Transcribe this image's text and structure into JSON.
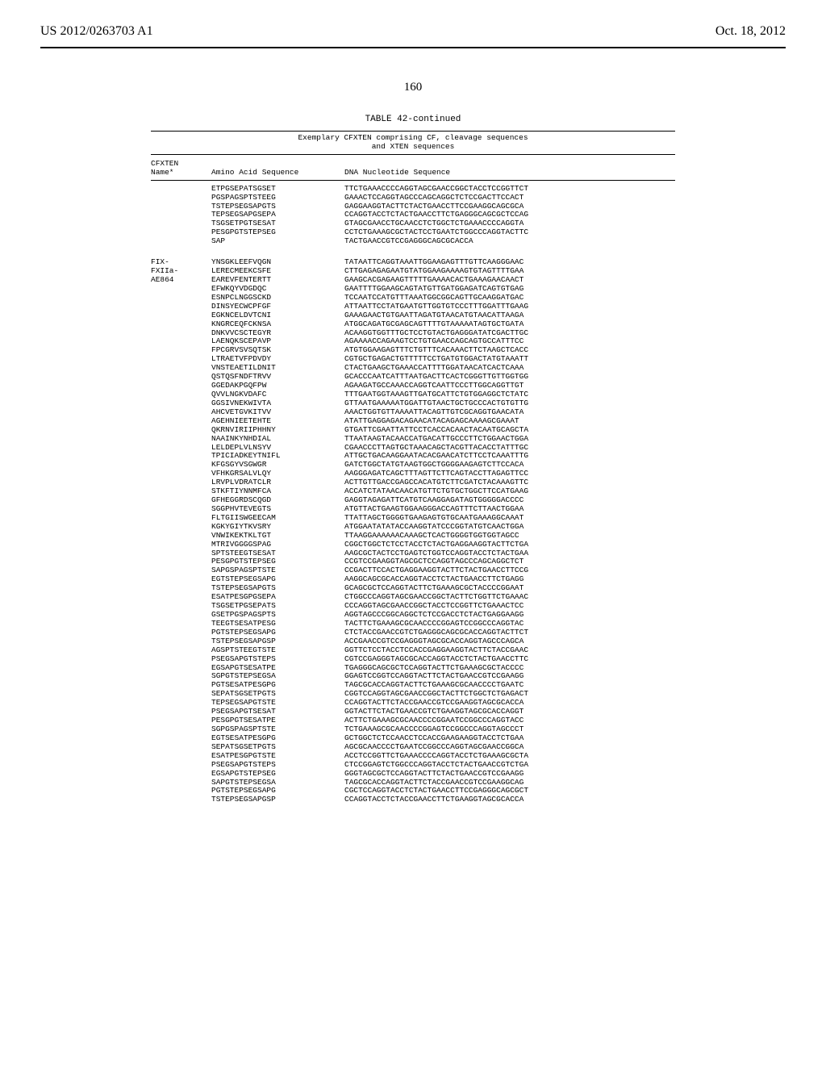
{
  "header": {
    "left": "US 2012/0263703 A1",
    "right": "Oct. 18, 2012"
  },
  "pageNumber": "160",
  "table": {
    "titleLine": "TABLE 42-continued",
    "headerLine1": "Exemplary CFXTEN comprising CF, cleavage sequences",
    "headerLine2": "and XTEN sequences",
    "colHeaders": {
      "name1": "CFXTEN",
      "name2": "Name*",
      "seq": "Amino Acid Sequence",
      "dna": "DNA Nucleotide Sequence"
    },
    "block1": {
      "seqLines": [
        "ETPGSEPATSGSET",
        "PGSPAGSPTSTEEG",
        "TSTEPSEGSAPGTS",
        "TEPSEGSAPGSEPA",
        "TSGSETPGTSESAT",
        "PESGPGTSTEPSEG",
        "SAP"
      ],
      "dnaLines": [
        "TTCTGAAACCCCAGGTAGCGAACCGGCTACCTCCGGTTCT",
        "GAAACTCCAGGTAGCCCAGCAGGCTCTCCGACTTCCACT",
        "GAGGAAGGTACTTCTACTGAACCTTCCGAAGGCAGCGCA",
        "CCAGGTACCTCTACTGAACCTTCTGAGGGCAGCGCTCCAG",
        "GTAGCGAACCTGCAACCTCTGGCTCTGAAACCCCAGGTA",
        "CCTCTGAAAGCGCTACTCCTGAATCTGGCCCAGGTACTTC",
        "TACTGAACCGTCCGAGGGCAGCGCACCA"
      ]
    },
    "block2": {
      "nameLines": [
        "FIX-",
        "FXIIa-",
        "AE864"
      ],
      "seqLines": [
        "YNSGKLEEFVQGN",
        "LERECMEEKCSFE",
        "EAREVFENTERTT",
        "EFWKQYVDGDQC",
        "ESNPCLNGGSCKD",
        "DINSYECWCPFGF",
        "EGKNCELDVTCNI",
        "KNGRCEQFCKNSA",
        "DNKVVCSCTEGYR",
        "LAENQKSCEPAVP",
        "FPCGRVSVSQTSK",
        "LTRAETVFPDVDY",
        "VNSTEAETILDNIT",
        "QSTQSFNDFTRVV",
        "GGEDAKPGQFPW",
        "QVVLNGKVDAFC",
        "GGSIVNEKWIVTA",
        "AHCVETGVKITVV",
        "AGEHNIEETEHTE",
        "QKRNVIRIIPHHNY",
        "NAAINKYNHDIAL",
        "LELDEPLVLNSYV",
        "TPICIADKEYTNIFL",
        "KFGSGYVSGWGR",
        "VFHKGRSALVLQY",
        "LRVPLVDRATCLR",
        "STKFTIYNNMFCA",
        "GFHEGGRDSCQGD",
        "SGGPHVTEVEGTS",
        "FLTGIISWGEECAM",
        "KGKYGIYTKVSRY",
        "VNWIKEKTKLTGT",
        "MTRIVGGGGSPAG",
        "SPTSTEEGTSESAT",
        "PESGPGTSTEPSEG",
        "SAPGSPAGSPTSTE",
        "EGTSTEPSEGSAPG",
        "TSTEPSEGSAPGTS",
        "ESATPESGPGSEPA",
        "TSGSETPGSEPATS",
        "GSETPGSPAGSPTS",
        "TEEGTSESATPESG",
        "PGTSTEPSEGSAPG",
        "TSTEPSEGSAPGSP",
        "AGSPTSTEEGTSTE",
        "PSEGSAPGTSTEPS",
        "EGSAPGTSESATPE",
        "SGPGTSTEPSEGSA",
        "PGTSESATPESGPG",
        "SEPATSGSETPGTS",
        "TEPSEGSAPGTSTE",
        "PSEGSAPGTSESAT",
        "PESGPGTSESATPE",
        "SGPGSPAGSPTSTE",
        "EGTSESATPESGPG",
        "SEPATSGSETPGTS",
        "ESATPESGPGTSTE",
        "PSEGSAPGTSTEPS",
        "EGSAPGTSTEPSEG",
        "SAPGTSTEPSEGSA",
        "PGTSTEPSEGSAPG",
        "TSTEPSEGSAPGSP"
      ],
      "dnaLines": [
        "TATAATTCAGGTAAATTGGAAGAGTTTGTTCAAGGGAAC",
        "CTTGAGAGAGAATGTATGGAAGAAAAGTGTAGTTTTGAA",
        "GAAGCACGAGAAGTTTTTGAAAACACTGAAAGAACAACT",
        "GAATTTTGGAAGCAGTATGTTGATGGAGATCAGTGTGAG",
        "TCCAATCCATGTTTAAATGGCGGCAGTTGCAAGGATGAC",
        "ATTAATTCCTATGAATGTTGGTGTCCCTTTGGATTTGAAG",
        "GAAAGAACTGTGAATTAGATGTAACATGTAACATTAAGA",
        "ATGGCAGATGCGAGCAGTTTTGTAAAAATAGTGCTGATA",
        "ACAAGGTGGTTTGCTCCTGTACTGAGGGATATCGACTTGC",
        "AGAAAACCAGAAGTCCTGTGAACCAGCAGTGCCATTTCC",
        "ATGTGGAAGAGTTTCTGTTTCACAAACTTCTAAGCTCACC",
        "CGTGCTGAGACTGTTTTTCCTGATGTGGACTATGTAAATT",
        "CTACTGAAGCTGAAACCATTTTGGATAACATCACTCAAA",
        "GCACCCAATCATTTAATGACTTCACTCGGGTTGTTGGTGG",
        "AGAAGATGCCAAACCAGGTCAATTCCCTTGGCAGGTTGT",
        "TTTGAATGGTAAAGTTGATGCATTCTGTGGAGGCTCTATC",
        "GTTAATGAAAAATGGATTGTAACTGCTGCCCACTGTGTTG",
        "AAACTGGTGTTAAAATTACAGTTGTCGCAGGTGAACATA",
        "ATATTGAGGAGACAGAACATACAGAGCAAAAGCGAAAT",
        "GTGATTCGAATTATTCCTCACCACAACTACAATGCAGCTA",
        "TTAATAAGTACAACCATGACATTGCCCTTCTGGAACTGGA",
        "CGAACCCTTAGTGCTAAACAGCTACGTTACACCTATTTGC",
        "ATTGCTGACAAGGAATACACGAACATCTTCCTCAAATTTG",
        "GATCTGGCTATGTAAGTGGCTGGGGAAGAGTCTTCCACA",
        "AAGGGAGATCAGCTTTAGTTCTTCAGTACCTTAGAGTTCC",
        "ACTTGTTGACCGAGCCACATGTCTTCGATCTACAAAGTTC",
        "ACCATCTATAACAACATGTTCTGTGCTGGCTTCCATGAAG",
        "GAGGTAGAGATTCATGTCAAGGAGATAGTGGGGGACCCC",
        "ATGTTACTGAAGTGGAAGGGACCAGTTTCTTAACTGGAA",
        "TTATTAGCTGGGGTGAAGAGTGTGCAATGAAAGGCAAAT",
        "ATGGAATATATACCAAGGTATCCCGGTATGTCAACTGGA",
        "TTAAGGAAAAAACAAAGCTCACTGGGGTGGTGGTAGCC",
        "CGGCTGGCTCTCCTACCTCTACTGAGGAAGGTACTTCTGA",
        "AAGCGCTACTCCTGAGTCTGGTCCAGGTACCTCTACTGAA",
        "CCGTCCGAAGGTAGCGCTCCAGGTAGCCCAGCAGGCTCT",
        "CCGACTTCCACTGAGGAAGGTACTTCTACTGAACCTTCCG",
        "AAGGCAGCGCACCAGGTACCTCTACTGAACCTTCTGAGG",
        "GCAGCGCTCCAGGTACTTCTGAAAGCGCTACCCCGGAAT",
        "CTGGCCCAGGTAGCGAACCGGCTACTTCTGGTTCTGAAAC",
        "CCCAGGTAGCGAACCGGCTACCTCCGGTTCTGAAACTCC",
        "AGGTAGCCCGGCAGGCTCTCCGACCTCTACTGAGGAAGG",
        "TACTTCTGAAAGCGCAACCCCGGAGTCCGGCCCAGGTAC",
        "CTCTACCGAACCGTCTGAGGGCAGCGCACCAGGTACTTCT",
        "ACCGAACCGTCCGAGGGTAGCGCACCAGGTAGCCCAGCA",
        "GGTTCTCCTACCTCCACCGAGGAAGGTACTTCTACCGAAC",
        "CGTCCGAGGGTAGCGCACCAGGTACCTCTACTGAACCTTC",
        "TGAGGGCAGCGCTCCAGGTACTTCTGAAAGCGCTACCCC",
        "GGAGTCCGGTCCAGGTACTTCTACTGAACCGTCCGAAGG",
        "TAGCGCACCAGGTACTTCTGAAAGCGCAACCCCTGAATC",
        "CGGTCCAGGTAGCGAACCGGCTACTTCTGGCTCTGAGACT",
        "CCAGGTACTTCTACCGAACCGTCCGAAGGTAGCGCACCA",
        "GGTACTTCTACTGAACCGTCTGAAGGTAGCGCACCAGGT",
        "ACTTCTGAAAGCGCAACCCCGGAATCCGGCCCAGGTACC",
        "TCTGAAAGCGCAACCCCGGAGTCCGGCCCAGGTAGCCCT",
        "GCTGGCTCTCCAACCTCCACCGAAGAAGGTACCTCTGAA",
        "AGCGCAACCCCTGAATCCGGCCCAGGTAGCGAACCGGCA",
        "ACCTCCGGTTCTGAAACCCCAGGTACCTCTGAAAGCGCTA",
        "CTCCGGAGTCTGGCCCAGGTACCTCTACTGAACCGTCTGA",
        "GGGTAGCGCTCCAGGTACTTCTACTGAACCGTCCGAAGG",
        "TAGCGCACCAGGTACTTCTACCGAACCGTCCGAAGGCAG",
        "CGCTCCAGGTACCTCTACTGAACCTTCCGAGGGCAGCGCT",
        "CCAGGTACCTCTACCGAACCTTCTGAAGGTAGCGCACCA"
      ]
    }
  }
}
